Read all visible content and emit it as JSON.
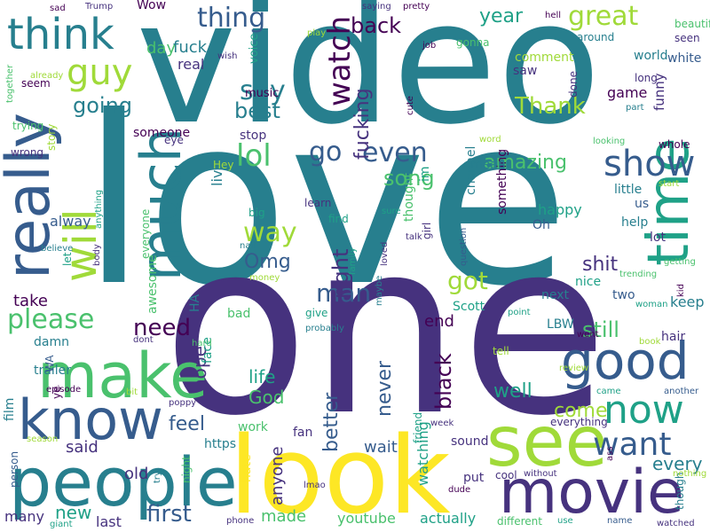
{
  "word_cloud": {
    "palette": [
      "#440154",
      "#46327e",
      "#365c8d",
      "#277f8e",
      "#1fa187",
      "#4ac16d",
      "#a0da39",
      "#fde725"
    ],
    "words": [
      {
        "text": "love",
        "color": "#277f8e"
      },
      {
        "text": "video",
        "color": "#277f8e"
      },
      {
        "text": "one",
        "color": "#46327e"
      },
      {
        "text": "look",
        "color": "#fde725"
      },
      {
        "text": "people",
        "color": "#277f8e"
      },
      {
        "text": "see",
        "color": "#a0da39"
      },
      {
        "text": "movie",
        "color": "#46327e"
      },
      {
        "text": "make",
        "color": "#4ac16d"
      },
      {
        "text": "know",
        "color": "#365c8d"
      },
      {
        "text": "good",
        "color": "#365c8d"
      },
      {
        "text": "time",
        "color": "#1fa187"
      },
      {
        "text": "really",
        "color": "#365c8d"
      },
      {
        "text": "much",
        "color": "#277f8e"
      },
      {
        "text": "think",
        "color": "#277f8e"
      },
      {
        "text": "guy",
        "color": "#a0da39"
      },
      {
        "text": "will",
        "color": "#a0da39"
      },
      {
        "text": "show",
        "color": "#365c8d"
      },
      {
        "text": "now",
        "color": "#1fa187"
      },
      {
        "text": "want",
        "color": "#365c8d"
      },
      {
        "text": "watch",
        "color": "#440154"
      },
      {
        "text": "great",
        "color": "#a0da39"
      },
      {
        "text": "thing",
        "color": "#365c8d"
      },
      {
        "text": "say",
        "color": "#277f8e"
      },
      {
        "text": "way",
        "color": "#a0da39"
      },
      {
        "text": "lol",
        "color": "#4ac16d"
      },
      {
        "text": "go",
        "color": "#365c8d"
      },
      {
        "text": "even",
        "color": "#365c8d"
      },
      {
        "text": "man",
        "color": "#365c8d"
      },
      {
        "text": "please",
        "color": "#4ac16d"
      },
      {
        "text": "need",
        "color": "#440154"
      },
      {
        "text": "got",
        "color": "#a0da39"
      },
      {
        "text": "right",
        "color": "#46327e"
      },
      {
        "text": "amazing",
        "color": "#4ac16d"
      },
      {
        "text": "Omg",
        "color": "#365c8d"
      },
      {
        "text": "best",
        "color": "#277f8e"
      },
      {
        "text": "going",
        "color": "#277f8e"
      },
      {
        "text": "back",
        "color": "#440154"
      },
      {
        "text": "year",
        "color": "#1fa187"
      },
      {
        "text": "Thank",
        "color": "#a0da39"
      },
      {
        "text": "fucking",
        "color": "#46327e"
      },
      {
        "text": "song",
        "color": "#4ac16d"
      },
      {
        "text": "still",
        "color": "#4ac16d"
      },
      {
        "text": "shit",
        "color": "#46327e"
      },
      {
        "text": "first",
        "color": "#365c8d"
      },
      {
        "text": "new",
        "color": "#1fa187"
      },
      {
        "text": "feel",
        "color": "#365c8d"
      },
      {
        "text": "well",
        "color": "#1fa187"
      },
      {
        "text": "come",
        "color": "#a0da39"
      },
      {
        "text": "every",
        "color": "#277f8e"
      },
      {
        "text": "black",
        "color": "#440154"
      },
      {
        "text": "never",
        "color": "#365c8d"
      },
      {
        "text": "better",
        "color": "#365c8d"
      },
      {
        "text": "life",
        "color": "#1fa187"
      },
      {
        "text": "God",
        "color": "#4ac16d"
      },
      {
        "text": "hope",
        "color": "#46327e"
      },
      {
        "text": "wait",
        "color": "#365c8d"
      },
      {
        "text": "watching",
        "color": "#1fa187"
      },
      {
        "text": "anyone",
        "color": "#46327e"
      },
      {
        "text": "made",
        "color": "#4ac16d"
      },
      {
        "text": "youtube",
        "color": "#4ac16d"
      },
      {
        "text": "actually",
        "color": "#1fa187"
      },
      {
        "text": "said",
        "color": "#46327e"
      },
      {
        "text": "old",
        "color": "#46327e"
      },
      {
        "text": "last",
        "color": "#46327e"
      },
      {
        "text": "many",
        "color": "#46327e"
      },
      {
        "text": "take",
        "color": "#440154"
      },
      {
        "text": "alway",
        "color": "#365c8d"
      },
      {
        "text": "live",
        "color": "#277f8e"
      },
      {
        "text": "day",
        "color": "#4ac16d"
      },
      {
        "text": "fuck",
        "color": "#277f8e"
      },
      {
        "text": "real",
        "color": "#46327e"
      },
      {
        "text": "Wow",
        "color": "#440154"
      },
      {
        "text": "someone",
        "color": "#440154"
      },
      {
        "text": "stop",
        "color": "#46327e"
      },
      {
        "text": "music",
        "color": "#440154"
      },
      {
        "text": "voice",
        "color": "#1fa187"
      },
      {
        "text": "im",
        "color": "#1fa187"
      },
      {
        "text": "channel",
        "color": "#277f8e"
      },
      {
        "text": "something",
        "color": "#440154"
      },
      {
        "text": "thought",
        "color": "#4ac16d"
      },
      {
        "text": "girl",
        "color": "#46327e"
      },
      {
        "text": "mean",
        "color": "#277f8e"
      },
      {
        "text": "happy",
        "color": "#1fa187"
      },
      {
        "text": "Oh",
        "color": "#365c8d"
      },
      {
        "text": "little",
        "color": "#277f8e"
      },
      {
        "text": "us",
        "color": "#365c8d"
      },
      {
        "text": "help",
        "color": "#277f8e"
      },
      {
        "text": "lot",
        "color": "#46327e"
      },
      {
        "text": "next",
        "color": "#277f8e"
      },
      {
        "text": "nice",
        "color": "#1fa187"
      },
      {
        "text": "two",
        "color": "#365c8d"
      },
      {
        "text": "keep",
        "color": "#277f8e"
      },
      {
        "text": "hair",
        "color": "#46327e"
      },
      {
        "text": "LBW",
        "color": "#277f8e"
      },
      {
        "text": "end",
        "color": "#440154"
      },
      {
        "text": "Scott",
        "color": "#1fa187"
      },
      {
        "text": "give",
        "color": "#1fa187"
      },
      {
        "text": "comment",
        "color": "#a0da39"
      },
      {
        "text": "world",
        "color": "#277f8e"
      },
      {
        "text": "white",
        "color": "#365c8d"
      },
      {
        "text": "saw",
        "color": "#46327e"
      },
      {
        "text": "long",
        "color": "#46327e"
      },
      {
        "text": "game",
        "color": "#440154"
      },
      {
        "text": "funny",
        "color": "#46327e"
      },
      {
        "text": "beautiful",
        "color": "#4ac16d"
      },
      {
        "text": "seen",
        "color": "#46327e"
      },
      {
        "text": "done",
        "color": "#46327e"
      },
      {
        "text": "gonna",
        "color": "#4ac16d"
      },
      {
        "text": "damn",
        "color": "#277f8e"
      },
      {
        "text": "trailer",
        "color": "#277f8e"
      },
      {
        "text": "film",
        "color": "#277f8e"
      },
      {
        "text": "person",
        "color": "#365c8d"
      },
      {
        "text": "work",
        "color": "#4ac16d"
      },
      {
        "text": "face",
        "color": "#1fa187"
      },
      {
        "text": "bad",
        "color": "#4ac16d"
      },
      {
        "text": "HA",
        "color": "#277f8e"
      },
      {
        "text": "awesome",
        "color": "#4ac16d"
      },
      {
        "text": "everyone",
        "color": "#4ac16d"
      },
      {
        "text": "big",
        "color": "#1fa187"
      },
      {
        "text": "find",
        "color": "#1fa187"
      },
      {
        "text": "learn",
        "color": "#46327e"
      },
      {
        "text": "fan",
        "color": "#46327e"
      },
      {
        "text": "hate",
        "color": "#fde725"
      },
      {
        "text": "https",
        "color": "#277f8e"
      },
      {
        "text": "night",
        "color": "#4ac16d"
      },
      {
        "text": "sound",
        "color": "#46327e"
      },
      {
        "text": "friend",
        "color": "#1fa187"
      },
      {
        "text": "put",
        "color": "#46327e"
      },
      {
        "text": "tell",
        "color": "#a0da39"
      },
      {
        "text": "ye",
        "color": "#440154"
      },
      {
        "text": "let",
        "color": "#1fa187"
      },
      {
        "text": "WA",
        "color": "#365c8d"
      },
      {
        "text": "though",
        "color": "#277f8e"
      },
      {
        "text": "seem",
        "color": "#440154"
      },
      {
        "text": "trying",
        "color": "#4ac16d"
      },
      {
        "text": "wrong",
        "color": "#46327e"
      },
      {
        "text": "story",
        "color": "#a0da39"
      },
      {
        "text": "eye",
        "color": "#46327e"
      },
      {
        "text": "Hey",
        "color": "#a0da39"
      },
      {
        "text": "already",
        "color": "#a0da39"
      },
      {
        "text": "together",
        "color": "#4ac16d"
      },
      {
        "text": "sad",
        "color": "#440154"
      },
      {
        "text": "Trump",
        "color": "#46327e"
      },
      {
        "text": "wish",
        "color": "#46327e"
      },
      {
        "text": "play",
        "color": "#a0da39"
      },
      {
        "text": "saying",
        "color": "#46327e"
      },
      {
        "text": "pretty",
        "color": "#440154"
      },
      {
        "text": "job",
        "color": "#440154"
      },
      {
        "text": "hell",
        "color": "#440154"
      },
      {
        "text": "around",
        "color": "#277f8e"
      },
      {
        "text": "part",
        "color": "#277f8e"
      },
      {
        "text": "whole",
        "color": "#440154"
      },
      {
        "text": "start",
        "color": "#a0da39"
      },
      {
        "text": "getting",
        "color": "#4ac16d"
      },
      {
        "text": "kid",
        "color": "#440154"
      },
      {
        "text": "woman",
        "color": "#1fa187"
      },
      {
        "text": "went",
        "color": "#440154"
      },
      {
        "text": "book",
        "color": "#a0da39"
      },
      {
        "text": "review",
        "color": "#a0da39"
      },
      {
        "text": "came",
        "color": "#1fa187"
      },
      {
        "text": "another",
        "color": "#365c8d"
      },
      {
        "text": "nothing",
        "color": "#a0da39"
      },
      {
        "text": "ass",
        "color": "#440154"
      },
      {
        "text": "without",
        "color": "#46327e"
      },
      {
        "text": "name",
        "color": "#365c8d"
      },
      {
        "text": "watched",
        "color": "#46327e"
      },
      {
        "text": "use",
        "color": "#1fa187"
      },
      {
        "text": "different",
        "color": "#4ac16d"
      },
      {
        "text": "everything",
        "color": "#46327e"
      },
      {
        "text": "cool",
        "color": "#46327e"
      },
      {
        "text": "dude",
        "color": "#440154"
      },
      {
        "text": "lmao",
        "color": "#46327e"
      },
      {
        "text": "week",
        "color": "#46327e"
      },
      {
        "text": "point",
        "color": "#1fa187"
      },
      {
        "text": "question",
        "color": "#365c8d"
      },
      {
        "text": "talk",
        "color": "#46327e"
      },
      {
        "text": "sure",
        "color": "#1fa187"
      },
      {
        "text": "word",
        "color": "#a0da39"
      },
      {
        "text": "looking",
        "color": "#4ac16d"
      },
      {
        "text": "trending",
        "color": "#4ac16d"
      },
      {
        "text": "cute",
        "color": "#440154"
      },
      {
        "text": "probably",
        "color": "#277f8e"
      },
      {
        "text": "loved",
        "color": "#46327e"
      },
      {
        "text": "maybe",
        "color": "#277f8e"
      },
      {
        "text": "family",
        "color": "#1fa187"
      },
      {
        "text": "money",
        "color": "#a0da39"
      },
      {
        "text": "nail",
        "color": "#277f8e"
      },
      {
        "text": "hard",
        "color": "#4ac16d"
      },
      {
        "text": "dont",
        "color": "#46327e"
      },
      {
        "text": "poppy",
        "color": "#46327e"
      },
      {
        "text": "bit",
        "color": "#a0da39"
      },
      {
        "text": "episode",
        "color": "#440154"
      },
      {
        "text": "season",
        "color": "#a0da39"
      },
      {
        "text": "try",
        "color": "#277f8e"
      },
      {
        "text": "phone",
        "color": "#46327e"
      },
      {
        "text": "giant",
        "color": "#1fa187"
      },
      {
        "text": "believe",
        "color": "#277f8e"
      },
      {
        "text": "body",
        "color": "#46327e"
      },
      {
        "text": "anything",
        "color": "#1fa187"
      },
      {
        "text": "making",
        "color": "#440154"
      }
    ]
  }
}
